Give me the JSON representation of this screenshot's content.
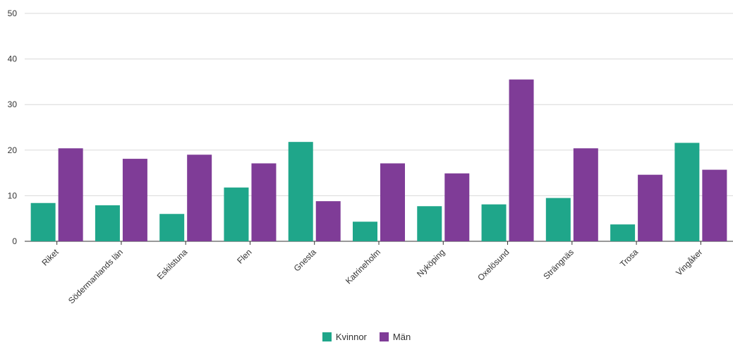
{
  "chart_data": {
    "type": "bar",
    "categories": [
      "Riket",
      "Södermanlands län",
      "Eskilstuna",
      "Flen",
      "Gnesta",
      "Katrineholm",
      "Nyköping",
      "Oxelösund",
      "Strängnäs",
      "Trosa",
      "Vingåker"
    ],
    "series": [
      {
        "name": "Kvinnor",
        "color": "#1fa68a",
        "values": [
          8.4,
          7.9,
          6.0,
          11.8,
          21.8,
          4.3,
          7.7,
          8.1,
          9.5,
          3.7,
          21.6
        ]
      },
      {
        "name": "Män",
        "color": "#7f3c97",
        "values": [
          20.4,
          18.1,
          19.0,
          17.1,
          8.8,
          17.1,
          14.9,
          35.5,
          20.4,
          14.6,
          15.7
        ]
      }
    ],
    "ylim": [
      0,
      50
    ],
    "yticks": [
      0,
      10,
      20,
      30,
      40,
      50
    ],
    "grid": true,
    "legend_position": "bottom-center"
  }
}
